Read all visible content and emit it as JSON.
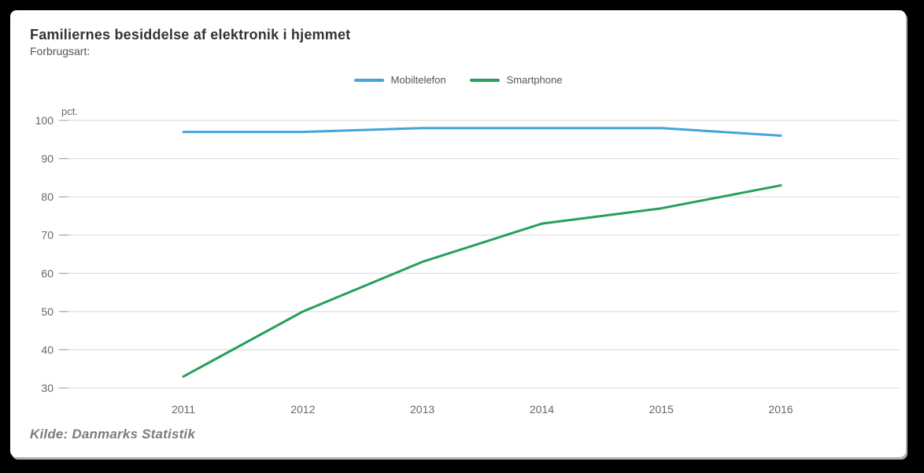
{
  "header": {
    "title": "Familiernes besiddelse af elektronik i hjemmet",
    "subtitle": "Forbrugsart:"
  },
  "footer": {
    "source": "Kilde: Danmarks Statistik"
  },
  "chart_data": {
    "type": "line",
    "title": "Familiernes besiddelse af elektronik i hjemmet",
    "xlabel": "",
    "ylabel": "pct.",
    "x": [
      2011,
      2012,
      2013,
      2014,
      2015,
      2016
    ],
    "series": [
      {
        "name": "Mobiltelefon",
        "color": "#45a3dd",
        "values": [
          97,
          97,
          98,
          98,
          98,
          96
        ]
      },
      {
        "name": "Smartphone",
        "color": "#25a05a",
        "values": [
          33,
          50,
          63,
          73,
          77,
          83
        ]
      }
    ],
    "ylim": [
      30,
      100
    ],
    "ytick_step": 10,
    "grid": true,
    "legend_position": "top-center"
  },
  "colors": {
    "page_bg": "#000000",
    "card_bg": "#ffffff",
    "grid": "#d7d7d2",
    "tick": "#9a9a96",
    "axis_text": "#666666",
    "title_text": "#333333",
    "subtitle_text": "#555555",
    "source_text": "#7c7c7c"
  }
}
